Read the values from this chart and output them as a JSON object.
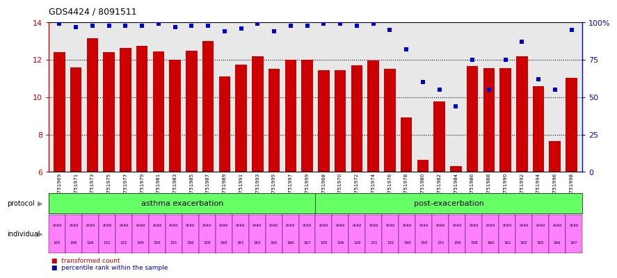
{
  "title": "GDS4424 / 8091511",
  "samples": [
    "GSM751969",
    "GSM751971",
    "GSM751973",
    "GSM751975",
    "GSM751977",
    "GSM751979",
    "GSM751981",
    "GSM751983",
    "GSM751985",
    "GSM751987",
    "GSM751989",
    "GSM751991",
    "GSM751993",
    "GSM751995",
    "GSM751997",
    "GSM751999",
    "GSM751968",
    "GSM751970",
    "GSM751972",
    "GSM751974",
    "GSM751976",
    "GSM751978",
    "GSM751980",
    "GSM751982",
    "GSM751984",
    "GSM751986",
    "GSM751988",
    "GSM751990",
    "GSM751992",
    "GSM751994",
    "GSM751996",
    "GSM751998"
  ],
  "bar_values": [
    12.4,
    11.6,
    13.15,
    12.4,
    12.65,
    12.75,
    12.45,
    12.0,
    12.5,
    13.0,
    11.1,
    11.75,
    12.2,
    11.5,
    12.0,
    12.0,
    11.45,
    11.45,
    11.7,
    11.95,
    11.5,
    8.9,
    6.65,
    9.75,
    6.3,
    11.65,
    11.55,
    11.55,
    12.2,
    10.6,
    7.65,
    11.05
  ],
  "dot_values": [
    99,
    97,
    98,
    98,
    98,
    98,
    99,
    97,
    98,
    98,
    94,
    96,
    99,
    94,
    98,
    98,
    99,
    99,
    98,
    99,
    95,
    82,
    60,
    55,
    44,
    75,
    55,
    75,
    87,
    62,
    55,
    95
  ],
  "ylim_left": [
    6,
    14
  ],
  "ylim_right": [
    0,
    100
  ],
  "yticks_left": [
    6,
    8,
    10,
    12,
    14
  ],
  "yticks_right": [
    0,
    25,
    50,
    75,
    100
  ],
  "ytick_labels_right": [
    "0",
    "25",
    "50",
    "75",
    "100%"
  ],
  "bar_color": "#CC0000",
  "dot_color": "#0000CC",
  "protocol_asthma_label": "asthma exacerbation",
  "protocol_post_label": "post-exacerbation",
  "protocol_color": "#66FF66",
  "individual_asthma": [
    "child\n105",
    "child\n106",
    "child\n126",
    "child\n131",
    "child\n132",
    "child\n149",
    "child\n150",
    "child\n151",
    "child\n156",
    "child\n158",
    "child\n160",
    "child\n161",
    "child\n163",
    "child\n165",
    "child\n166",
    "child\n167"
  ],
  "individual_post": [
    "child\n105",
    "child\n106",
    "child\n126",
    "child\n131",
    "child\n132",
    "child\n149",
    "child\n150",
    "child\n151",
    "child\n156",
    "child\n158",
    "child\n160",
    "child\n161",
    "child\n163",
    "child\n165",
    "child\n166",
    "child\n167"
  ],
  "individual_color": "#FF80FF",
  "n_asthma": 16,
  "n_post": 16,
  "legend_bar_label": "transformed count",
  "legend_dot_label": "percentile rank within the sample",
  "bg_color": "#E8E8E8",
  "white_bg": "#FFFFFF"
}
